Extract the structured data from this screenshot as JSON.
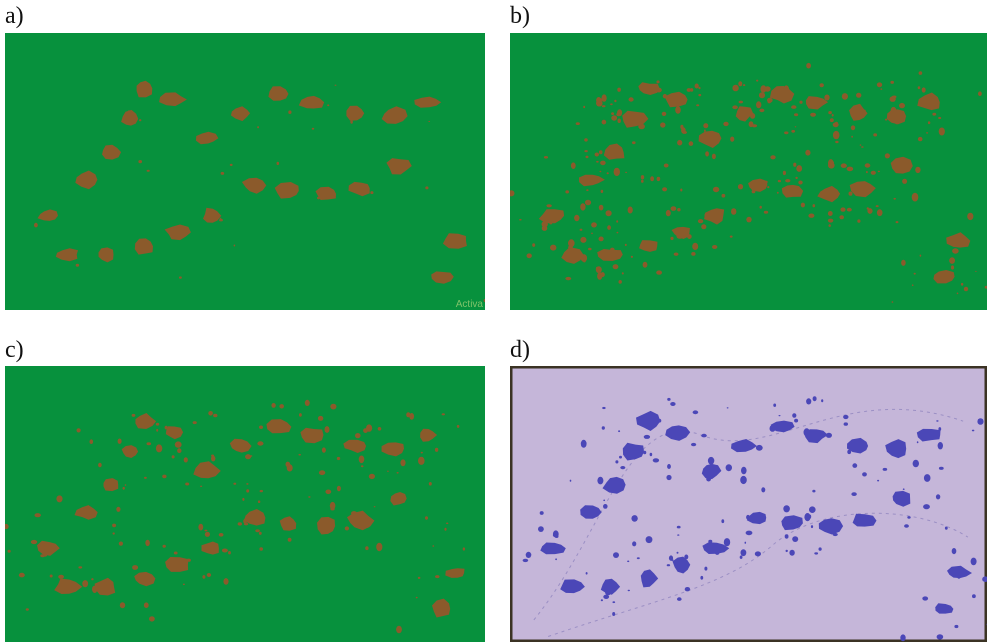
{
  "panels": [
    {
      "label": "a)",
      "style": "green-brown",
      "noise": "low"
    },
    {
      "label": "b)",
      "style": "green-brown",
      "noise": "high"
    },
    {
      "label": "c)",
      "style": "green-brown",
      "noise": "medium"
    },
    {
      "label": "d)",
      "style": "lavender-blue",
      "noise": "medium"
    }
  ],
  "watermark_text": "Activa",
  "colors": {
    "background_green": "#07913d",
    "object_brown": "#8b5a2b",
    "background_lavender": "#c5b6d9",
    "object_blue": "#4b47b7",
    "frame_dark": "#3b3324"
  }
}
